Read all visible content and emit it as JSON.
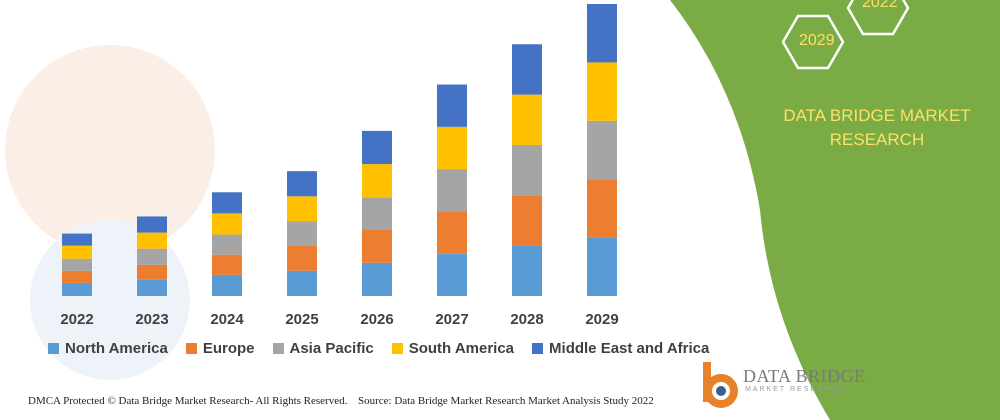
{
  "chart_data": {
    "type": "bar",
    "stacked": true,
    "categories": [
      "2022",
      "2023",
      "2024",
      "2025",
      "2026",
      "2027",
      "2028",
      "2029"
    ],
    "series": [
      {
        "name": "North America",
        "color": "#5b9bd5",
        "values": [
          13,
          16,
          21,
          25,
          33,
          42,
          50,
          58
        ]
      },
      {
        "name": "Europe",
        "color": "#ed7d31",
        "values": [
          12,
          15,
          20,
          25,
          33,
          42,
          50,
          58
        ]
      },
      {
        "name": "Asia Pacific",
        "color": "#a5a5a5",
        "values": [
          12,
          16,
          20,
          24,
          32,
          42,
          50,
          58
        ]
      },
      {
        "name": "South America",
        "color": "#ffc000",
        "values": [
          13,
          16,
          21,
          25,
          33,
          42,
          50,
          58
        ]
      },
      {
        "name": "Middle East and Africa",
        "color": "#4472c4",
        "values": [
          12,
          16,
          21,
          25,
          33,
          42,
          50,
          58
        ]
      }
    ],
    "legend_position": "bottom",
    "grid": false
  },
  "brand": {
    "line1": "DATA BRIDGE MARKET",
    "line2": "RESEARCH"
  },
  "hexagons": {
    "top": "2022",
    "bottom": "2029"
  },
  "logo": {
    "name": "DATA BRIDGE",
    "tagline": "MARKET RESEARCH"
  },
  "footer": {
    "left": "DMCA Protected © Data Bridge Market Research- All Rights Reserved.",
    "right": "Source: Data Bridge Market Research Market Analysis Study 2022"
  },
  "colors": {
    "panel_green": "#7aab45",
    "accent_yellow": "#ffe066"
  }
}
